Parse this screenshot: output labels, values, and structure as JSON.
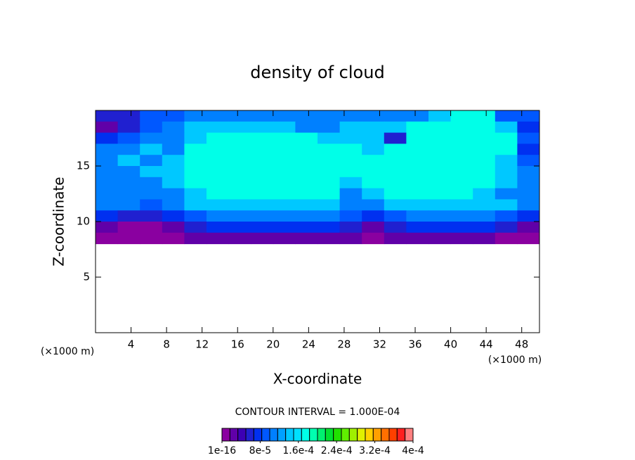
{
  "chart_data": {
    "type": "contour",
    "title": "density of cloud",
    "x_label": "X-coordinate",
    "y_label": "Z-coordinate",
    "x_unit": "(×1000 m)",
    "y_unit": "(×1000 m)",
    "note": "CONTOUR INTERVAL = 1.000E-04",
    "xlim": [
      0,
      50
    ],
    "ylim": [
      0,
      20
    ],
    "xticks": [
      4,
      8,
      12,
      16,
      20,
      24,
      28,
      32,
      36,
      40,
      44,
      48
    ],
    "yticks": [
      5,
      10,
      15
    ],
    "x_bins": [
      0,
      2.5,
      5,
      7.5,
      10,
      12.5,
      15,
      17.5,
      20,
      22.5,
      25,
      27.5,
      30,
      32.5,
      35,
      37.5,
      40,
      42.5,
      45,
      47.5,
      50
    ],
    "y_bins": [
      20,
      19,
      18,
      17,
      16,
      15,
      14,
      13,
      12,
      11,
      10,
      9,
      8
    ],
    "z": [
      [
        5.5e-05,
        5.5e-05,
        9e-05,
        9e-05,
        0.00011,
        0.00011,
        0.00011,
        0.00011,
        0.00011,
        0.00011,
        0.00011,
        0.00011,
        0.00011,
        0.00011,
        0.00011,
        0.00014,
        0.000175,
        0.000175,
        9e-05,
        9e-05
      ],
      [
        3e-05,
        5.5e-05,
        9e-05,
        0.00011,
        0.00014,
        0.00014,
        0.00014,
        0.00014,
        0.00014,
        0.00011,
        0.00011,
        0.00014,
        0.00014,
        0.00014,
        0.000175,
        0.000175,
        0.000175,
        0.000175,
        0.00014,
        7e-05
      ],
      [
        7e-05,
        9e-05,
        0.00011,
        0.00011,
        0.00014,
        0.000175,
        0.000175,
        0.000175,
        0.000175,
        0.000175,
        0.00014,
        0.00014,
        0.00014,
        5.5e-05,
        0.000175,
        0.000175,
        0.000175,
        0.000175,
        0.000175,
        9e-05
      ],
      [
        0.00011,
        0.00011,
        0.00014,
        0.00011,
        0.000175,
        0.000175,
        0.000175,
        0.000175,
        0.000175,
        0.000175,
        0.000175,
        0.000175,
        0.00014,
        0.000175,
        0.000175,
        0.000175,
        0.000175,
        0.000175,
        0.000175,
        7e-05
      ],
      [
        0.00011,
        0.00014,
        0.00011,
        0.00014,
        0.000175,
        0.000175,
        0.000175,
        0.000175,
        0.000175,
        0.000175,
        0.000175,
        0.000175,
        0.000175,
        0.000175,
        0.000175,
        0.000175,
        0.000175,
        0.000175,
        0.00014,
        9e-05
      ],
      [
        0.00011,
        0.00011,
        0.00014,
        0.00014,
        0.000175,
        0.000175,
        0.000175,
        0.000175,
        0.000175,
        0.000175,
        0.000175,
        0.000175,
        0.000175,
        0.000175,
        0.000175,
        0.000175,
        0.000175,
        0.000175,
        0.00014,
        0.00011
      ],
      [
        0.00011,
        0.00011,
        0.00011,
        0.00014,
        0.000175,
        0.000175,
        0.000175,
        0.000175,
        0.000175,
        0.000175,
        0.000175,
        0.00014,
        0.000175,
        0.000175,
        0.000175,
        0.000175,
        0.000175,
        0.000175,
        0.00014,
        0.00011
      ],
      [
        0.00011,
        0.00011,
        0.00011,
        0.00011,
        0.00014,
        0.000175,
        0.000175,
        0.000175,
        0.000175,
        0.000175,
        0.000175,
        0.00011,
        0.00014,
        0.000175,
        0.000175,
        0.000175,
        0.000175,
        0.00014,
        0.00011,
        0.00011
      ],
      [
        0.00011,
        0.00011,
        9e-05,
        0.00011,
        0.00014,
        0.00014,
        0.00014,
        0.00014,
        0.00014,
        0.00014,
        0.00014,
        0.00011,
        0.00011,
        0.00014,
        0.00014,
        0.00014,
        0.00014,
        0.00014,
        0.00014,
        0.00011
      ],
      [
        7e-05,
        5.5e-05,
        5.5e-05,
        7e-05,
        9e-05,
        0.00011,
        0.00011,
        0.00011,
        0.00011,
        0.00011,
        0.00011,
        9e-05,
        7e-05,
        9e-05,
        0.00011,
        0.00011,
        0.00011,
        0.00011,
        9e-05,
        7e-05
      ],
      [
        3e-05,
        1e-05,
        1e-05,
        3e-05,
        5.5e-05,
        7e-05,
        7e-05,
        7e-05,
        7e-05,
        7e-05,
        7e-05,
        5.5e-05,
        3e-05,
        5.5e-05,
        7e-05,
        7e-05,
        7e-05,
        7e-05,
        5.5e-05,
        3e-05
      ],
      [
        1e-05,
        1e-05,
        1e-05,
        1e-05,
        3e-05,
        3e-05,
        3e-05,
        3e-05,
        3e-05,
        3e-05,
        3e-05,
        3e-05,
        1e-05,
        3e-05,
        3e-05,
        3e-05,
        3e-05,
        3e-05,
        1e-05,
        1e-05
      ]
    ],
    "colorbar": {
      "lim": [
        0,
        0.0004
      ],
      "colors": [
        "#8a00a0",
        "#6000a8",
        "#3c00b4",
        "#2020d0",
        "#0030f0",
        "#0058ff",
        "#0080ff",
        "#00a0ff",
        "#00c8ff",
        "#00e0ff",
        "#00ffe8",
        "#00ffb0",
        "#00f070",
        "#00e030",
        "#20e000",
        "#60f000",
        "#a0f000",
        "#e0f000",
        "#ffd000",
        "#ffa000",
        "#ff7000",
        "#ff4000",
        "#ff2020",
        "#ff8080"
      ],
      "ticks": [
        {
          "value": 1e-16,
          "label": "1e-16"
        },
        {
          "value": 8e-05,
          "label": "8e-5"
        },
        {
          "value": 0.00016,
          "label": "1.6e-4"
        },
        {
          "value": 0.00024,
          "label": "2.4e-4"
        },
        {
          "value": 0.00032,
          "label": "3.2e-4"
        },
        {
          "value": 0.0004,
          "label": "4e-4"
        }
      ]
    }
  }
}
